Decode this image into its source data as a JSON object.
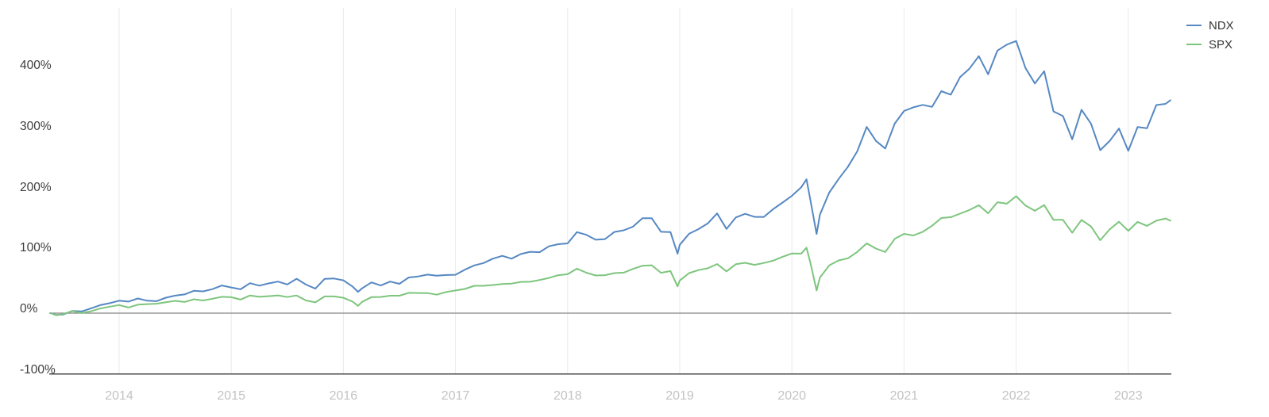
{
  "chart_data": {
    "type": "line",
    "title": "",
    "xlabel": "",
    "ylabel": "",
    "xlim": [
      2013.35,
      2023.45
    ],
    "ylim": [
      -100,
      500
    ],
    "grid": "vertical-only",
    "x_axis": {
      "ticks": [
        2014,
        2015,
        2016,
        2017,
        2018,
        2019,
        2020,
        2021,
        2022,
        2023
      ],
      "labels": [
        "2014",
        "2015",
        "2016",
        "2017",
        "2018",
        "2019",
        "2020",
        "2021",
        "2022",
        "2023"
      ]
    },
    "y_axis": {
      "ticks": [
        400,
        300,
        200,
        100,
        0,
        -100
      ],
      "labels": [
        "400%",
        "300%",
        "200%",
        "100%",
        "0%",
        "-100%"
      ],
      "zero_line_value": 0,
      "bottom_line_value": -100
    },
    "legend": {
      "position": "top-right",
      "items": [
        {
          "label": "NDX",
          "color": "#5688c2"
        },
        {
          "label": "SPX",
          "color": "#7dc57d"
        }
      ]
    },
    "series": [
      {
        "name": "NDX",
        "color": "#5688c2",
        "points": [
          [
            2013.39,
            0
          ],
          [
            2013.44,
            -3
          ],
          [
            2013.5,
            -2.4
          ],
          [
            2013.583,
            3.6
          ],
          [
            2013.667,
            2.9
          ],
          [
            2013.75,
            8
          ],
          [
            2013.833,
            13.3
          ],
          [
            2013.917,
            16.4
          ],
          [
            2014,
            20.4
          ],
          [
            2014.083,
            19
          ],
          [
            2014.167,
            24.1
          ],
          [
            2014.25,
            20.4
          ],
          [
            2014.333,
            19.7
          ],
          [
            2014.417,
            25.4
          ],
          [
            2014.5,
            28.8
          ],
          [
            2014.583,
            30.8
          ],
          [
            2014.667,
            36.8
          ],
          [
            2014.75,
            35.8
          ],
          [
            2014.833,
            39.5
          ],
          [
            2014.917,
            45.5
          ],
          [
            2015,
            42.2
          ],
          [
            2015.083,
            39.2
          ],
          [
            2015.167,
            49.2
          ],
          [
            2015.25,
            45.2
          ],
          [
            2015.333,
            48.9
          ],
          [
            2015.417,
            51.9
          ],
          [
            2015.5,
            47.2
          ],
          [
            2015.583,
            56.6
          ],
          [
            2015.667,
            46.9
          ],
          [
            2015.75,
            40.2
          ],
          [
            2015.833,
            56.3
          ],
          [
            2015.917,
            56.9
          ],
          [
            2016,
            53.9
          ],
          [
            2016.083,
            43.5
          ],
          [
            2016.13,
            35
          ],
          [
            2016.167,
            40.8
          ],
          [
            2016.25,
            50.6
          ],
          [
            2016.333,
            45.5
          ],
          [
            2016.417,
            51.9
          ],
          [
            2016.5,
            48.2
          ],
          [
            2016.583,
            58.6
          ],
          [
            2016.667,
            60.3
          ],
          [
            2016.75,
            63.3
          ],
          [
            2016.833,
            61.6
          ],
          [
            2016.917,
            62.7
          ],
          [
            2017,
            63
          ],
          [
            2017.083,
            71.4
          ],
          [
            2017.167,
            78.4
          ],
          [
            2017.25,
            82.4
          ],
          [
            2017.333,
            89.5
          ],
          [
            2017.417,
            94.2
          ],
          [
            2017.5,
            89.5
          ],
          [
            2017.583,
            97.2
          ],
          [
            2017.667,
            100.9
          ],
          [
            2017.75,
            100.2
          ],
          [
            2017.833,
            109.9
          ],
          [
            2017.917,
            113.3
          ],
          [
            2018,
            114.6
          ],
          [
            2018.083,
            133.1
          ],
          [
            2018.167,
            128.7
          ],
          [
            2018.25,
            120.7
          ],
          [
            2018.333,
            121.7
          ],
          [
            2018.417,
            133.4
          ],
          [
            2018.5,
            136.1
          ],
          [
            2018.583,
            142.1
          ],
          [
            2018.667,
            155.9
          ],
          [
            2018.75,
            155.9
          ],
          [
            2018.833,
            133.7
          ],
          [
            2018.917,
            133.1
          ],
          [
            2018.98,
            97.7
          ],
          [
            2019,
            112.3
          ],
          [
            2019.083,
            130.4
          ],
          [
            2019.167,
            138.1
          ],
          [
            2019.25,
            147.5
          ],
          [
            2019.333,
            163.9
          ],
          [
            2019.417,
            138.4
          ],
          [
            2019.5,
            157.2
          ],
          [
            2019.583,
            163.3
          ],
          [
            2019.667,
            158.2
          ],
          [
            2019.75,
            158.2
          ],
          [
            2019.833,
            171
          ],
          [
            2019.917,
            181.7
          ],
          [
            2020,
            192.8
          ],
          [
            2020.083,
            206.8
          ],
          [
            2020.13,
            220
          ],
          [
            2020.167,
            183.7
          ],
          [
            2020.22,
            130
          ],
          [
            2020.25,
            161.9
          ],
          [
            2020.333,
            198.1
          ],
          [
            2020.417,
            220.6
          ],
          [
            2020.5,
            240.7
          ],
          [
            2020.583,
            265.9
          ],
          [
            2020.667,
            306.1
          ],
          [
            2020.75,
            283
          ],
          [
            2020.833,
            270.6
          ],
          [
            2020.917,
            311.5
          ],
          [
            2021,
            332.3
          ],
          [
            2021.083,
            338.3
          ],
          [
            2021.167,
            342.3
          ],
          [
            2021.25,
            339
          ],
          [
            2021.333,
            364.8
          ],
          [
            2021.417,
            359.1
          ],
          [
            2021.5,
            387.9
          ],
          [
            2021.583,
            401.7
          ],
          [
            2021.667,
            422.4
          ],
          [
            2021.75,
            392.6
          ],
          [
            2021.833,
            431.5
          ],
          [
            2021.917,
            441.3
          ],
          [
            2022,
            447.3
          ],
          [
            2022.083,
            403
          ],
          [
            2022.167,
            377.5
          ],
          [
            2022.25,
            397.7
          ],
          [
            2022.333,
            331.6
          ],
          [
            2022.417,
            323.9
          ],
          [
            2022.5,
            285.7
          ],
          [
            2022.583,
            334.3
          ],
          [
            2022.667,
            311.5
          ],
          [
            2022.75,
            267.9
          ],
          [
            2022.833,
            282.7
          ],
          [
            2022.917,
            303.4
          ],
          [
            2023,
            266.9
          ],
          [
            2023.083,
            305.8
          ],
          [
            2023.167,
            303.8
          ],
          [
            2023.25,
            342
          ],
          [
            2023.333,
            344
          ],
          [
            2023.375,
            350
          ]
        ]
      },
      {
        "name": "SPX",
        "color": "#7dc57d",
        "points": [
          [
            2013.39,
            0
          ],
          [
            2013.44,
            -3.5
          ],
          [
            2013.5,
            -1.5
          ],
          [
            2013.583,
            3.4
          ],
          [
            2013.667,
            0.1
          ],
          [
            2013.75,
            3.1
          ],
          [
            2013.833,
            7.7
          ],
          [
            2013.917,
            10.7
          ],
          [
            2014,
            13.3
          ],
          [
            2014.083,
            9.3
          ],
          [
            2014.167,
            14
          ],
          [
            2014.25,
            14.8
          ],
          [
            2014.333,
            15.5
          ],
          [
            2014.417,
            18
          ],
          [
            2014.5,
            20.2
          ],
          [
            2014.583,
            18.4
          ],
          [
            2014.667,
            22.8
          ],
          [
            2014.75,
            20.9
          ],
          [
            2014.833,
            23.7
          ],
          [
            2014.917,
            26.8
          ],
          [
            2015,
            26.2
          ],
          [
            2015.083,
            22.3
          ],
          [
            2015.167,
            29.1
          ],
          [
            2015.25,
            26.8
          ],
          [
            2015.333,
            27.9
          ],
          [
            2015.417,
            29.2
          ],
          [
            2015.5,
            26.5
          ],
          [
            2015.583,
            29
          ],
          [
            2015.667,
            20.9
          ],
          [
            2015.75,
            17.7
          ],
          [
            2015.833,
            27.5
          ],
          [
            2015.917,
            27.5
          ],
          [
            2016,
            25.3
          ],
          [
            2016.083,
            18.9
          ],
          [
            2016.13,
            12
          ],
          [
            2016.167,
            18.5
          ],
          [
            2016.25,
            26.3
          ],
          [
            2016.333,
            26.6
          ],
          [
            2016.417,
            28.6
          ],
          [
            2016.5,
            28.7
          ],
          [
            2016.583,
            33.3
          ],
          [
            2016.667,
            33.1
          ],
          [
            2016.75,
            32.9
          ],
          [
            2016.833,
            30.3
          ],
          [
            2016.917,
            34.8
          ],
          [
            2017,
            37.3
          ],
          [
            2017.083,
            39.7
          ],
          [
            2017.167,
            44.9
          ],
          [
            2017.25,
            44.9
          ],
          [
            2017.333,
            46.2
          ],
          [
            2017.417,
            47.9
          ],
          [
            2017.5,
            48.6
          ],
          [
            2017.583,
            51.4
          ],
          [
            2017.667,
            51.6
          ],
          [
            2017.75,
            54.4
          ],
          [
            2017.833,
            57.9
          ],
          [
            2017.917,
            62.4
          ],
          [
            2018,
            64
          ],
          [
            2018.083,
            73.1
          ],
          [
            2018.167,
            66.4
          ],
          [
            2018.25,
            61.9
          ],
          [
            2018.333,
            62.4
          ],
          [
            2018.417,
            65.8
          ],
          [
            2018.5,
            66.6
          ],
          [
            2018.583,
            72.7
          ],
          [
            2018.667,
            77.9
          ],
          [
            2018.75,
            78.7
          ],
          [
            2018.833,
            66.3
          ],
          [
            2018.917,
            69.2
          ],
          [
            2018.98,
            44.1
          ],
          [
            2019,
            53.7
          ],
          [
            2019.083,
            65.8
          ],
          [
            2019.167,
            70.7
          ],
          [
            2019.25,
            73.8
          ],
          [
            2019.333,
            80.6
          ],
          [
            2019.417,
            68.7
          ],
          [
            2019.5,
            80.4
          ],
          [
            2019.583,
            82.7
          ],
          [
            2019.667,
            79.4
          ],
          [
            2019.75,
            82.5
          ],
          [
            2019.833,
            86.3
          ],
          [
            2019.917,
            92.6
          ],
          [
            2020,
            98.1
          ],
          [
            2020.083,
            97.8
          ],
          [
            2020.13,
            107.6
          ],
          [
            2020.167,
            81.1
          ],
          [
            2020.22,
            37.2
          ],
          [
            2020.25,
            58.5
          ],
          [
            2020.333,
            78.5
          ],
          [
            2020.417,
            86.6
          ],
          [
            2020.5,
            90.1
          ],
          [
            2020.583,
            100.6
          ],
          [
            2020.667,
            114.6
          ],
          [
            2020.75,
            106.2
          ],
          [
            2020.833,
            100.5
          ],
          [
            2020.917,
            122.1
          ],
          [
            2021,
            130.3
          ],
          [
            2021.083,
            127.7
          ],
          [
            2021.167,
            133.7
          ],
          [
            2021.25,
            143.6
          ],
          [
            2021.333,
            156.3
          ],
          [
            2021.417,
            157.8
          ],
          [
            2021.5,
            163.5
          ],
          [
            2021.583,
            169.5
          ],
          [
            2021.667,
            177.3
          ],
          [
            2021.75,
            164.1
          ],
          [
            2021.833,
            182.3
          ],
          [
            2021.917,
            180
          ],
          [
            2022,
            192.2
          ],
          [
            2022.083,
            176.9
          ],
          [
            2022.167,
            168.2
          ],
          [
            2022.25,
            177.7
          ],
          [
            2022.333,
            153.3
          ],
          [
            2022.417,
            153.3
          ],
          [
            2022.5,
            132.1
          ],
          [
            2022.583,
            153.2
          ],
          [
            2022.667,
            142.5
          ],
          [
            2022.75,
            119.9
          ],
          [
            2022.833,
            137.4
          ],
          [
            2022.917,
            150.2
          ],
          [
            2023,
            135.4
          ],
          [
            2023.083,
            150
          ],
          [
            2023.167,
            143.4
          ],
          [
            2023.25,
            151.9
          ],
          [
            2023.333,
            155.6
          ],
          [
            2023.375,
            152
          ]
        ]
      }
    ],
    "colors": {
      "background": "#ffffff",
      "gridline": "#eaeaea",
      "zero_line": "#858585",
      "axis_line": "#4a4a4a",
      "y_label": "#3d3d3d",
      "x_label": "#c3c3c3",
      "legend_text": "#363636"
    }
  }
}
